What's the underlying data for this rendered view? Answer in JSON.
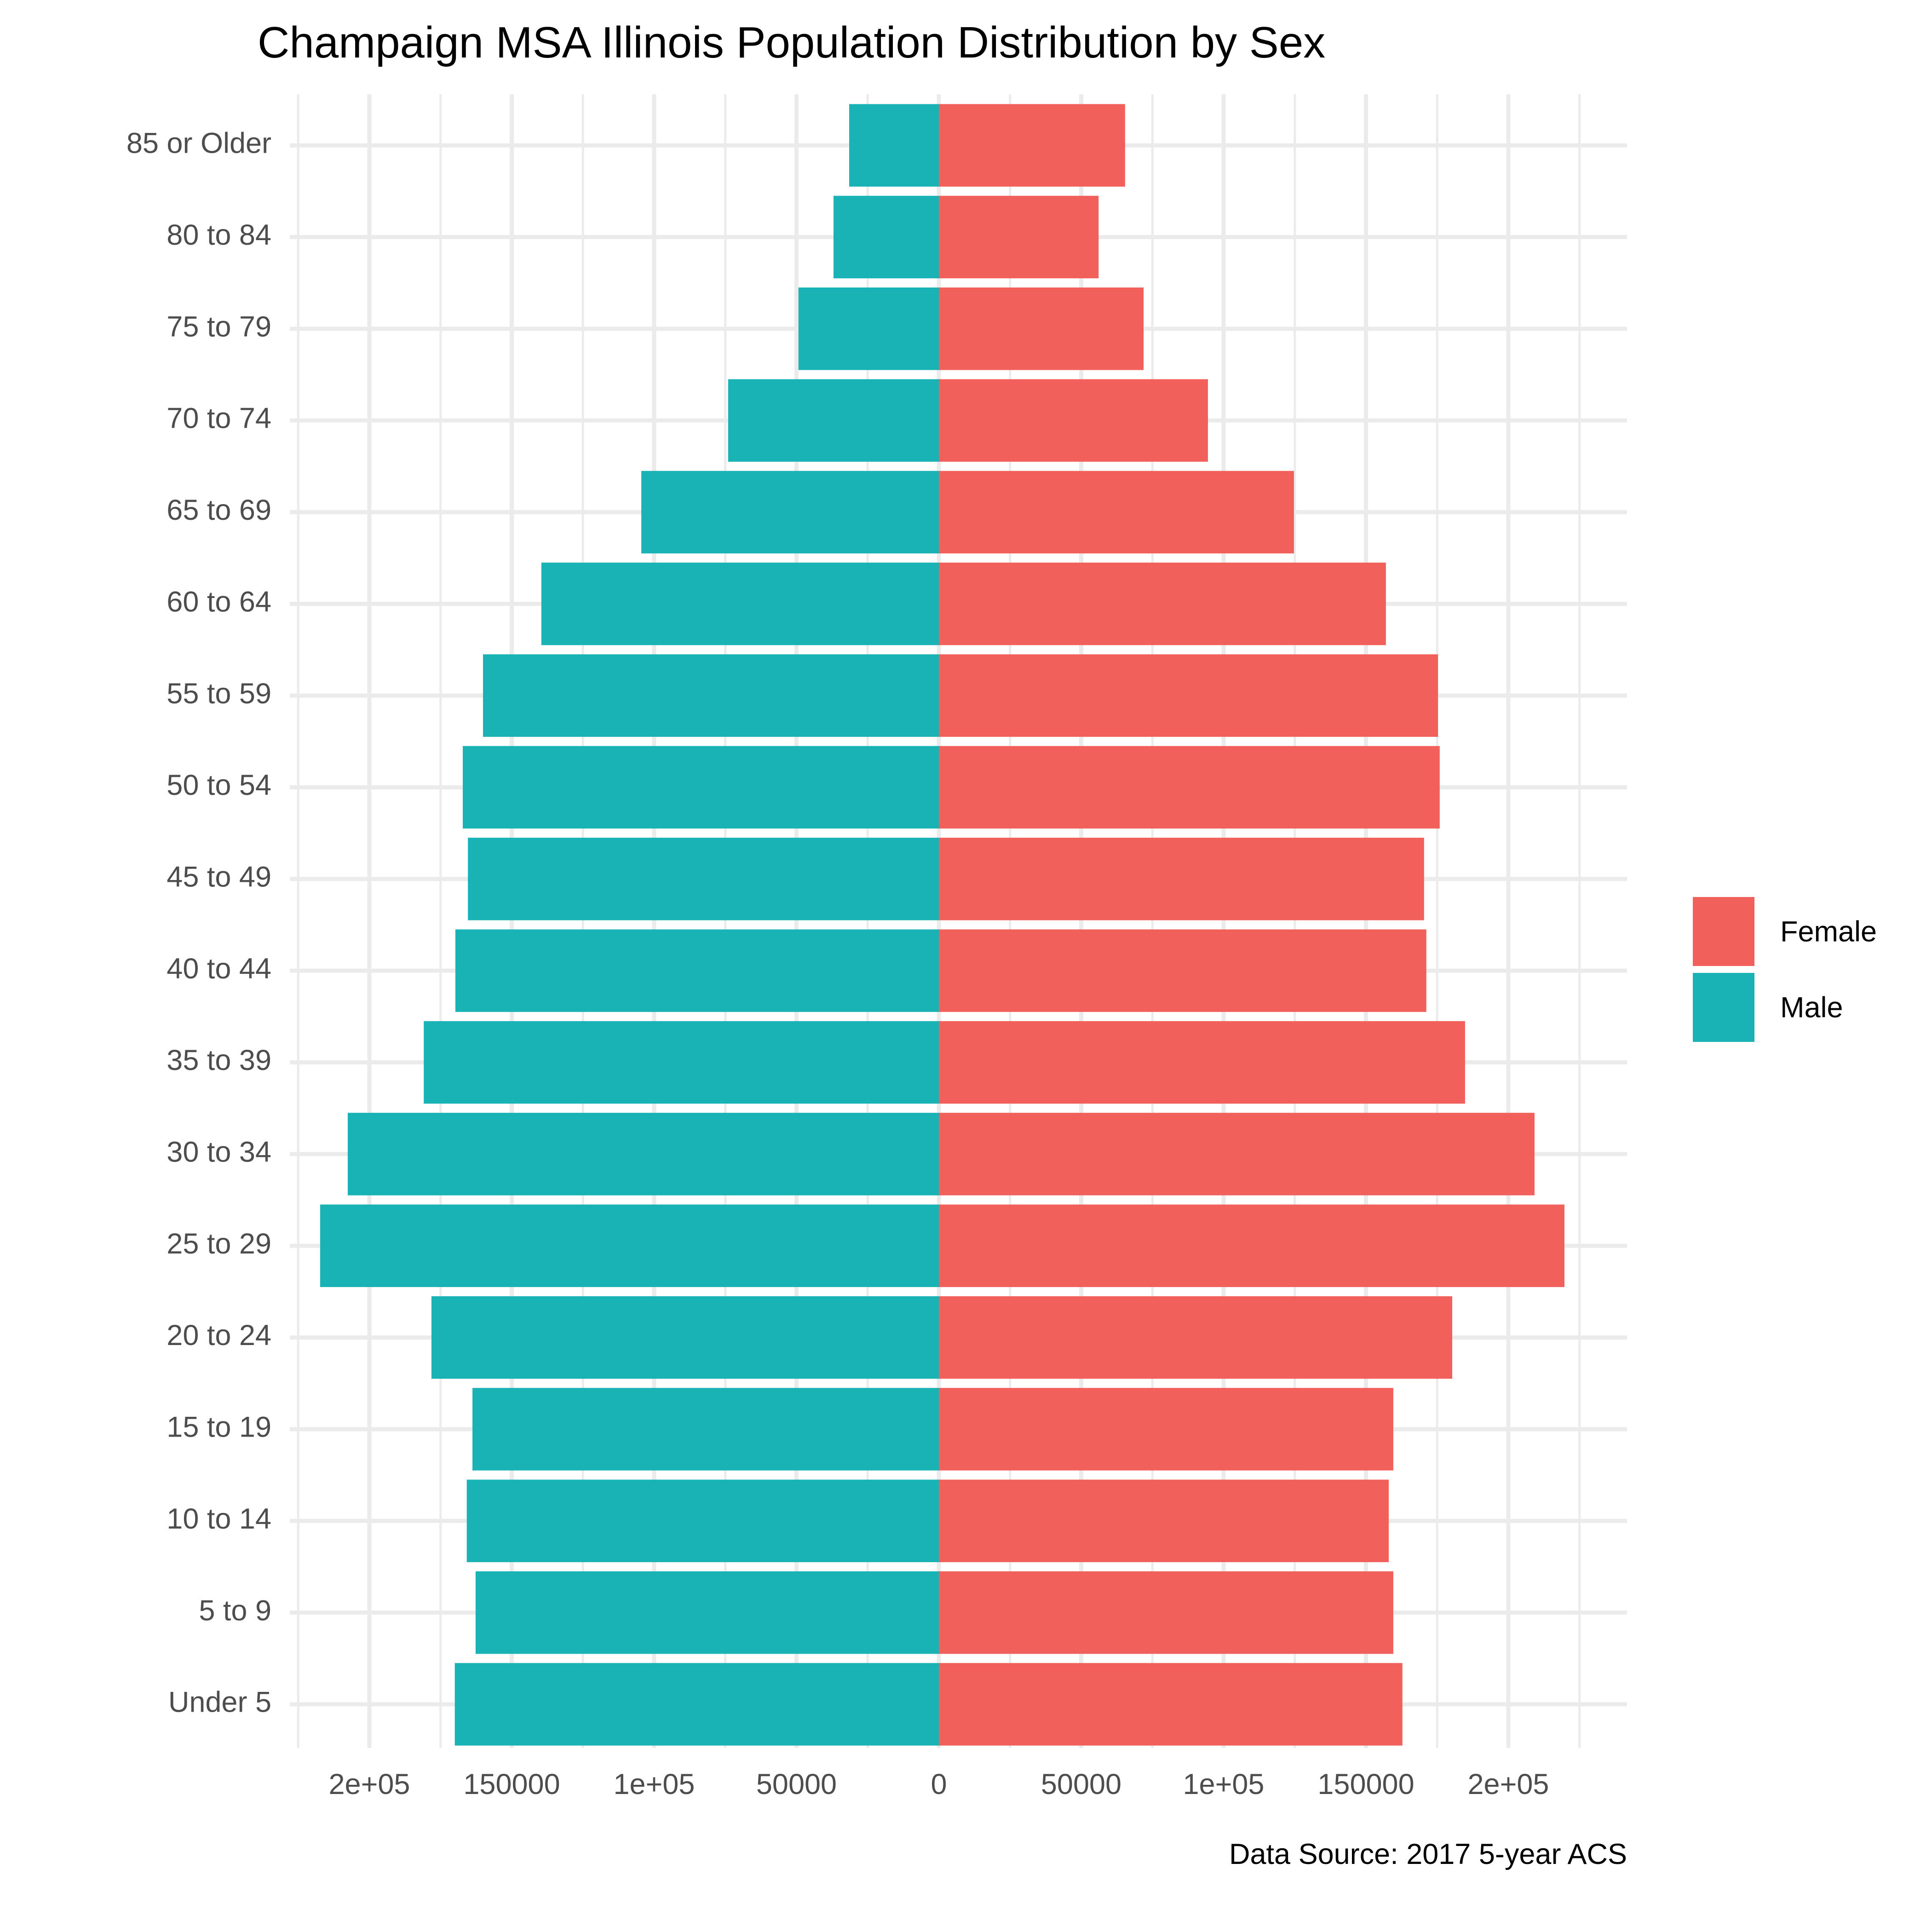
{
  "chart_data": {
    "type": "bar",
    "orientation": "horizontal",
    "layout": "population-pyramid",
    "title": "Champaign MSA Illinois Population Distribution by Sex",
    "caption": "Data Source: 2017 5-year ACS",
    "xlabel": "",
    "ylabel": "",
    "xlim": [
      -225000,
      225000
    ],
    "x_ticks": [
      -200000,
      -150000,
      -100000,
      -50000,
      0,
      50000,
      100000,
      150000,
      200000
    ],
    "x_tick_labels": [
      "2e+05",
      "150000",
      "1e+05",
      "50000",
      "0",
      "50000",
      "1e+05",
      "150000",
      "2e+05"
    ],
    "grid": true,
    "legend": {
      "position": "right",
      "entries": [
        {
          "name": "Female",
          "color": "#F8766D"
        },
        {
          "name": "Male",
          "color": "#00BFC4"
        }
      ]
    },
    "categories": [
      "Under 5",
      "5 to 9",
      "10 to 14",
      "15 to 19",
      "20 to 24",
      "25 to 29",
      "30 to 34",
      "35 to 39",
      "40 to 44",
      "45 to 49",
      "50 to 54",
      "55 to 59",
      "60 to 64",
      "65 to 69",
      "70 to 74",
      "75 to 79",
      "80 to 84",
      "85 or Older"
    ],
    "series": [
      {
        "name": "Female",
        "side": "right",
        "color": "#F2605C",
        "values": [
          162800,
          159600,
          158000,
          159600,
          180300,
          219700,
          209200,
          184800,
          171200,
          170400,
          175900,
          175300,
          157000,
          124700,
          94500,
          71900,
          56100,
          65400
        ]
      },
      {
        "name": "Male",
        "side": "left",
        "color": "#19B3B6",
        "values": [
          170000,
          162700,
          165800,
          163800,
          178200,
          217300,
          207600,
          180900,
          169800,
          165400,
          167200,
          160100,
          139600,
          104500,
          74000,
          49300,
          37000,
          31500
        ]
      }
    ]
  }
}
